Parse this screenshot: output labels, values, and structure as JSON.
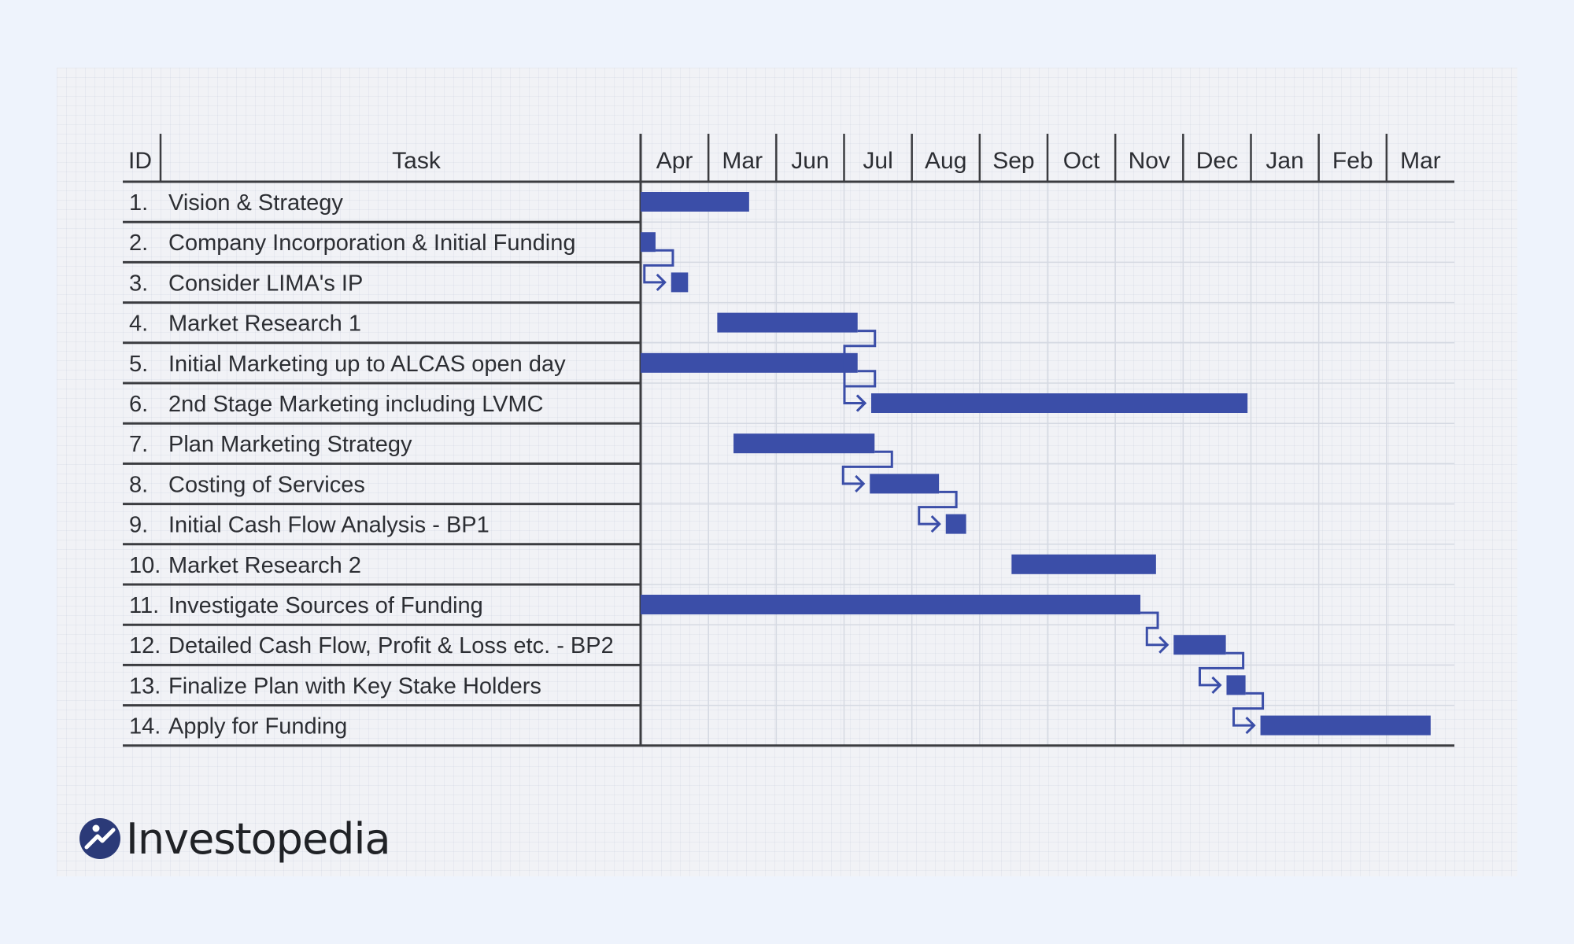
{
  "chart_data": {
    "type": "gantt",
    "title": "",
    "headers": {
      "id": "ID",
      "task": "Task"
    },
    "months": [
      "Apr",
      "Mar",
      "Jun",
      "Jul",
      "Aug",
      "Sep",
      "Oct",
      "Nov",
      "Dec",
      "Jan",
      "Feb",
      "Mar"
    ],
    "tasks": [
      {
        "id": "1.",
        "name": "Vision & Strategy",
        "start": 0.0,
        "end": 1.6
      },
      {
        "id": "2.",
        "name": "Company Incorporation & Initial Funding",
        "start": 0.0,
        "end": 0.22
      },
      {
        "id": "3.",
        "name": "Consider LIMA's IP",
        "start": 0.45,
        "end": 0.7
      },
      {
        "id": "4.",
        "name": "Market Research 1",
        "start": 1.13,
        "end": 3.2
      },
      {
        "id": "5.",
        "name": "Initial Marketing up to ALCAS open day",
        "start": 0.0,
        "end": 3.2
      },
      {
        "id": "6.",
        "name": "2nd Stage Marketing including LVMC",
        "start": 3.4,
        "end": 8.95
      },
      {
        "id": "7.",
        "name": "Plan Marketing Strategy",
        "start": 1.37,
        "end": 3.45
      },
      {
        "id": "8.",
        "name": "Costing of Services",
        "start": 3.38,
        "end": 4.4
      },
      {
        "id": "9.",
        "name": "Initial Cash Flow Analysis - BP1",
        "start": 4.5,
        "end": 4.8
      },
      {
        "id": "10.",
        "name": "Market Research 2",
        "start": 5.47,
        "end": 7.6
      },
      {
        "id": "11.",
        "name": "Investigate Sources of Funding",
        "start": 0.0,
        "end": 7.37
      },
      {
        "id": "12.",
        "name": "Detailed Cash Flow, Profit & Loss etc. - BP2",
        "start": 7.86,
        "end": 8.63
      },
      {
        "id": "13.",
        "name": "Finalize Plan with Key Stake Holders",
        "start": 8.64,
        "end": 8.92
      },
      {
        "id": "14.",
        "name": "Apply for Funding",
        "start": 9.14,
        "end": 11.65
      }
    ],
    "dependencies": [
      {
        "from": 1,
        "to": 2
      },
      {
        "from": 3,
        "to": 5
      },
      {
        "from": 4,
        "to": 5
      },
      {
        "from": 6,
        "to": 7
      },
      {
        "from": 7,
        "to": 8
      },
      {
        "from": 10,
        "to": 11
      },
      {
        "from": 11,
        "to": 12
      },
      {
        "from": 12,
        "to": 13
      }
    ],
    "bar_color": "#3b4ea8",
    "grid": true
  },
  "brand": {
    "name": "Investopedia"
  }
}
